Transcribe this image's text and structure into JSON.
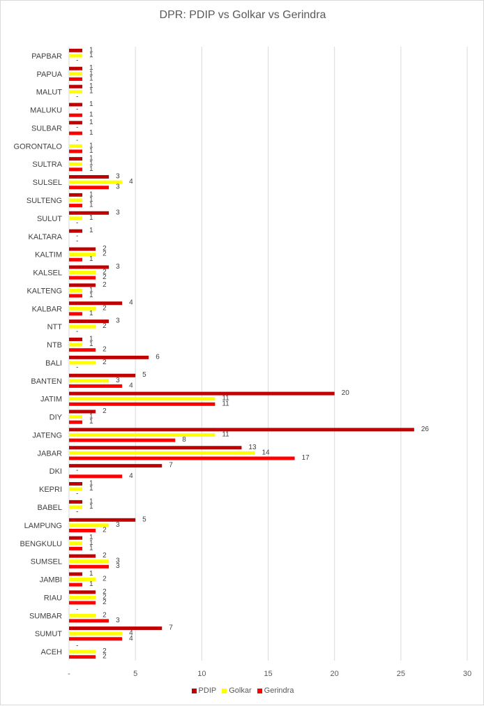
{
  "title": "DPR: PDIP vs Golkar vs Gerindra",
  "colors": {
    "PDIP": "#c00000",
    "Golkar": "#ffff00",
    "Gerindra": "#ff0000",
    "grid": "#d9d9d9"
  },
  "chart_data": {
    "type": "bar",
    "orientation": "horizontal",
    "title": "DPR: PDIP vs Golkar vs Gerindra",
    "xlim": [
      0,
      30
    ],
    "x_ticks": [
      "-",
      "5",
      "10",
      "15",
      "20",
      "25",
      "30"
    ],
    "grid": "vertical gridlines",
    "legend_position": "bottom",
    "zero_label": "-",
    "categories": [
      "PAPBAR",
      "PAPUA",
      "MALUT",
      "MALUKU",
      "SULBAR",
      "GORONTALO",
      "SULTRA",
      "SULSEL",
      "SULTENG",
      "SULUT",
      "KALTARA",
      "KALTIM",
      "KALSEL",
      "KALTENG",
      "KALBAR",
      "NTT",
      "NTB",
      "BALI",
      "BANTEN",
      "JATIM",
      "DIY",
      "JATENG",
      "JABAR",
      "DKI",
      "KEPRI",
      "BABEL",
      "LAMPUNG",
      "BENGKULU",
      "SUMSEL",
      "JAMBI",
      "RIAU",
      "SUMBAR",
      "SUMUT",
      "ACEH"
    ],
    "series": [
      {
        "name": "PDIP",
        "values": [
          1,
          1,
          1,
          1,
          1,
          0,
          1,
          3,
          1,
          3,
          1,
          2,
          3,
          2,
          4,
          3,
          1,
          6,
          5,
          20,
          2,
          26,
          13,
          7,
          1,
          1,
          5,
          1,
          2,
          1,
          2,
          0,
          7,
          0
        ]
      },
      {
        "name": "Golkar",
        "values": [
          1,
          1,
          1,
          0,
          0,
          1,
          1,
          4,
          1,
          1,
          0,
          2,
          2,
          1,
          2,
          2,
          1,
          2,
          3,
          11,
          1,
          11,
          14,
          0,
          1,
          1,
          3,
          1,
          3,
          2,
          2,
          2,
          4,
          2
        ]
      },
      {
        "name": "Gerindra",
        "values": [
          0,
          1,
          0,
          1,
          1,
          1,
          1,
          3,
          1,
          0,
          0,
          1,
          2,
          1,
          1,
          0,
          2,
          0,
          4,
          11,
          1,
          8,
          17,
          4,
          0,
          0,
          2,
          1,
          3,
          1,
          2,
          3,
          4,
          2
        ]
      }
    ]
  }
}
